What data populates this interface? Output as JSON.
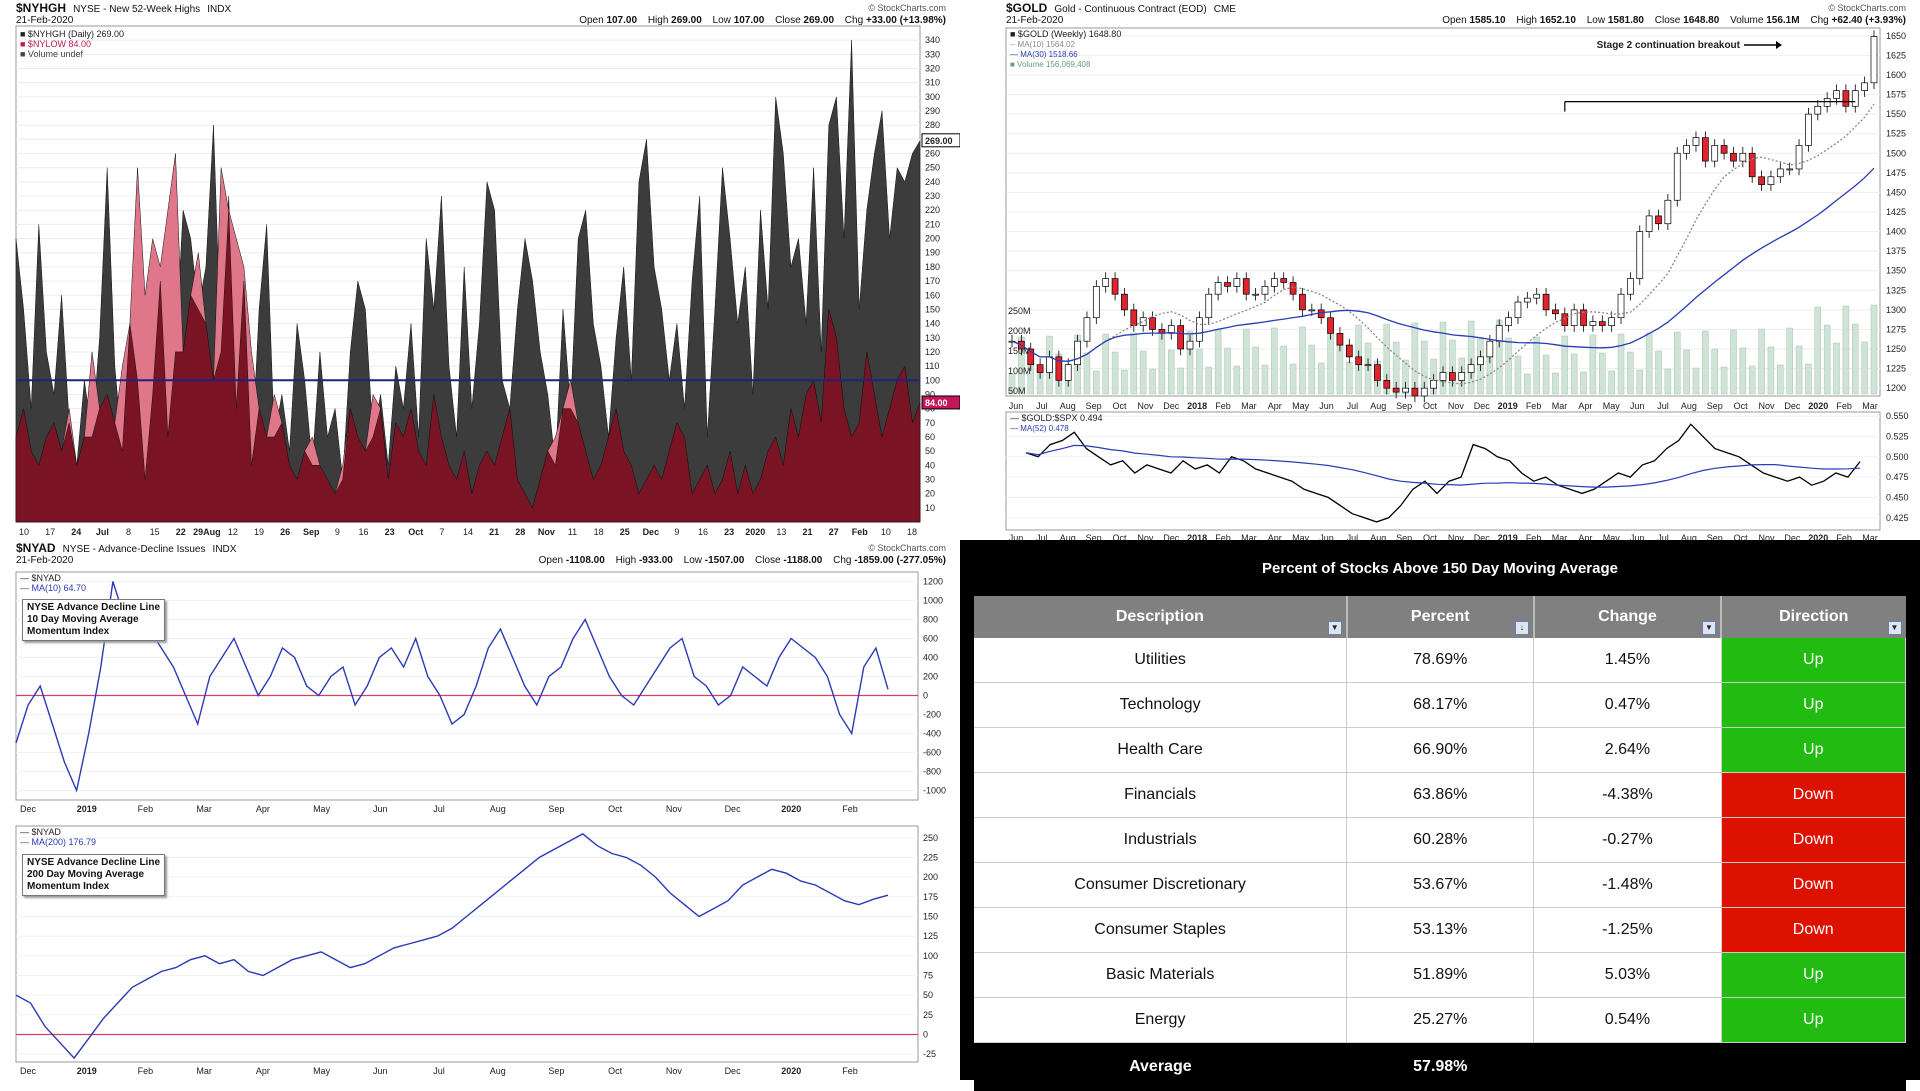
{
  "nyhgh": {
    "symbol": "$NYHGH",
    "desc": "NYSE - New 52-Week Highs",
    "exchange": "INDX",
    "source": "© StockCharts.com",
    "date": "21-Feb-2020",
    "ohlc": {
      "open_label": "Open",
      "open": "107.00",
      "high_label": "High",
      "high": "269.00",
      "low_label": "Low",
      "low": "107.00",
      "close_label": "Close",
      "close": "269.00",
      "chg_label": "Chg",
      "chg": "+33.00 (+13.98%)"
    },
    "legend": [
      "$NYHGH (Daily) 269.00",
      "$NYLOW 84.00",
      "Volume undef"
    ],
    "last_high_label": "269.00",
    "last_low_label": "84.00",
    "y_ticks": [
      "340",
      "330",
      "320",
      "310",
      "300",
      "290",
      "280",
      "270",
      "260",
      "250",
      "240",
      "230",
      "220",
      "210",
      "200",
      "190",
      "180",
      "170",
      "160",
      "150",
      "140",
      "130",
      "120",
      "110",
      "100",
      "90",
      "80",
      "70",
      "60",
      "50",
      "40",
      "30",
      "20",
      "10"
    ],
    "x_labels": [
      "10",
      "17",
      "24",
      "Jul",
      "8",
      "15",
      "22",
      "29Aug",
      "12",
      "19",
      "26",
      "Sep",
      "9",
      "16",
      "23",
      "Oct",
      "7",
      "14",
      "21",
      "28",
      "Nov",
      "11",
      "18",
      "25",
      "Dec",
      "9",
      "16",
      "23",
      "2020",
      "13",
      "21",
      "27",
      "Feb",
      "10",
      "18"
    ],
    "colors": {
      "highs": "#3c3c3c",
      "lows": "#7a1424",
      "lows_fill_above": "#e0768a",
      "refline": "#1a237e"
    }
  },
  "gold": {
    "symbol": "$GOLD",
    "desc": "Gold - Continuous Contract (EOD)",
    "exchange": "CME",
    "source": "© StockCharts.com",
    "date": "21-Feb-2020",
    "ohlc": {
      "open_label": "Open",
      "open": "1585.10",
      "high_label": "High",
      "high": "1652.10",
      "low_label": "Low",
      "low": "1581.80",
      "close_label": "Close",
      "close": "1648.80",
      "vol_label": "Volume",
      "vol": "156.1M",
      "chg_label": "Chg",
      "chg": "+62.40 (+3.93%)"
    },
    "legend": [
      "$GOLD (Weekly) 1648.80",
      "MA(10) 1564.02",
      "MA(30) 1518.66",
      "Volume 156,069,408"
    ],
    "annotation": "Stage 2 continuation breakout",
    "y_ticks": [
      "1650",
      "1625",
      "1600",
      "1575",
      "1550",
      "1525",
      "1500",
      "1475",
      "1450",
      "1425",
      "1400",
      "1375",
      "1350",
      "1325",
      "1300",
      "1275",
      "1250",
      "1225",
      "1200"
    ],
    "vol_ticks": [
      "250M",
      "200M",
      "150M",
      "100M",
      "50M"
    ],
    "x_labels": [
      "Jun",
      "Jul",
      "Aug",
      "Sep",
      "Oct",
      "Nov",
      "Dec",
      "2018",
      "Feb",
      "Mar",
      "Apr",
      "May",
      "Jun",
      "Jul",
      "Aug",
      "Sep",
      "Oct",
      "Nov",
      "Dec",
      "2019",
      "Feb",
      "Mar",
      "Apr",
      "May",
      "Jun",
      "Jul",
      "Aug",
      "Sep",
      "Oct",
      "Nov",
      "Dec",
      "2020",
      "Feb",
      "Mar"
    ],
    "ratio_legend": [
      "$GOLD:$SPX 0.494",
      "MA(52) 0.478"
    ],
    "ratio_ticks": [
      "0.550",
      "0.525",
      "0.500",
      "0.475",
      "0.450",
      "0.425"
    ]
  },
  "nyad10": {
    "symbol": "$NYAD",
    "desc": "NYSE - Advance-Decline Issues",
    "exchange": "INDX",
    "source": "© StockCharts.com",
    "date": "21-Feb-2020",
    "ohlc": {
      "open_label": "Open",
      "open": "-1108.00",
      "high_label": "High",
      "high": "-933.00",
      "low_label": "Low",
      "low": "-1507.00",
      "close_label": "Close",
      "close": "-1188.00",
      "chg_label": "Chg",
      "chg": "-1859.00 (-277.05%)"
    },
    "legend": [
      "$NYAD",
      "MA(10) 64.70"
    ],
    "annotation": [
      "NYSE Advance Decline Line",
      "10 Day Moving Average",
      "Momentum Index"
    ],
    "y_ticks": [
      "1200",
      "1000",
      "800",
      "600",
      "400",
      "200",
      "0",
      "-200",
      "-400",
      "-600",
      "-800",
      "-1000"
    ],
    "x_labels": [
      "Dec",
      "2019",
      "Feb",
      "Mar",
      "Apr",
      "May",
      "Jun",
      "Jul",
      "Aug",
      "Sep",
      "Oct",
      "Nov",
      "Dec",
      "2020",
      "Feb"
    ]
  },
  "nyad200": {
    "legend": [
      "$NYAD",
      "MA(200) 176.79"
    ],
    "annotation": [
      "NYSE Advance Decline Line",
      "200 Day Moving Average",
      "Momentum Index"
    ],
    "y_ticks": [
      "250",
      "225",
      "200",
      "175",
      "150",
      "125",
      "100",
      "75",
      "50",
      "25",
      "0",
      "-25"
    ],
    "x_labels": [
      "Dec",
      "2019",
      "Feb",
      "Mar",
      "Apr",
      "May",
      "Jun",
      "Jul",
      "Aug",
      "Sep",
      "Oct",
      "Nov",
      "Dec",
      "2020",
      "Feb"
    ]
  },
  "table": {
    "title": "Percent of Stocks Above 150 Day Moving Average",
    "headers": [
      "Description",
      "Percent",
      "Change",
      "Direction"
    ],
    "rows": [
      {
        "desc": "Utilities",
        "pct": "78.69%",
        "chg": "1.45%",
        "dir": "Up"
      },
      {
        "desc": "Technology",
        "pct": "68.17%",
        "chg": "0.47%",
        "dir": "Up"
      },
      {
        "desc": "Health Care",
        "pct": "66.90%",
        "chg": "2.64%",
        "dir": "Up"
      },
      {
        "desc": "Financials",
        "pct": "63.86%",
        "chg": "-4.38%",
        "dir": "Down"
      },
      {
        "desc": "Industrials",
        "pct": "60.28%",
        "chg": "-0.27%",
        "dir": "Down"
      },
      {
        "desc": "Consumer Discretionary",
        "pct": "53.67%",
        "chg": "-1.48%",
        "dir": "Down"
      },
      {
        "desc": "Consumer Staples",
        "pct": "53.13%",
        "chg": "-1.25%",
        "dir": "Down"
      },
      {
        "desc": "Basic Materials",
        "pct": "51.89%",
        "chg": "5.03%",
        "dir": "Up"
      },
      {
        "desc": "Energy",
        "pct": "25.27%",
        "chg": "0.54%",
        "dir": "Up"
      }
    ],
    "average_label": "Average",
    "average_value": "57.98%",
    "colors": {
      "up": "#22bb11",
      "down": "#dd1100"
    }
  },
  "chart_data": [
    {
      "type": "area",
      "title": "$NYHGH NYSE - New 52-Week Highs",
      "ylim": [
        0,
        350
      ],
      "reference_line": 100,
      "series": [
        {
          "name": "$NYHGH",
          "values": [
            200,
            150,
            80,
            210,
            120,
            90,
            160,
            70,
            40,
            100,
            60,
            130,
            250,
            110,
            50,
            140,
            100,
            30,
            90,
            170,
            60,
            120,
            220,
            200,
            150,
            180,
            280,
            120,
            230,
            80,
            170,
            40,
            150,
            210,
            60,
            90,
            50,
            140,
            100,
            40,
            120,
            60,
            80,
            30,
            120,
            170,
            150,
            60,
            90,
            40,
            110,
            80,
            140,
            60,
            200,
            150,
            230,
            110,
            60,
            180,
            80,
            140,
            240,
            220,
            100,
            80,
            150,
            200,
            170,
            120,
            90,
            40,
            150,
            80,
            200,
            220,
            140,
            110,
            60,
            130,
            180,
            100,
            240,
            270,
            180,
            150,
            100,
            140,
            80,
            170,
            230,
            60,
            150,
            250,
            200,
            140,
            180,
            90,
            220,
            150,
            300,
            260,
            180,
            200,
            140,
            250,
            120,
            280,
            300,
            200,
            340,
            150,
            220,
            260,
            290,
            200,
            250,
            240,
            260,
            269
          ]
        },
        {
          "name": "$NYLOW",
          "values": [
            60,
            80,
            50,
            40,
            60,
            70,
            50,
            80,
            40,
            60,
            120,
            80,
            90,
            70,
            110,
            140,
            250,
            160,
            200,
            180,
            220,
            260,
            120,
            160,
            190,
            140,
            100,
            250,
            220,
            200,
            180,
            120,
            80,
            60,
            90,
            70,
            40,
            30,
            50,
            60,
            40,
            30,
            20,
            40,
            80,
            60,
            50,
            90,
            80,
            30,
            70,
            60,
            80,
            50,
            40,
            90,
            60,
            40,
            30,
            50,
            20,
            40,
            50,
            40,
            60,
            80,
            30,
            20,
            10,
            30,
            50,
            60,
            80,
            100,
            70,
            50,
            30,
            40,
            60,
            80,
            50,
            40,
            20,
            30,
            40,
            30,
            50,
            70,
            60,
            20,
            30,
            40,
            20,
            30,
            50,
            20,
            40,
            20,
            30,
            50,
            60,
            40,
            80,
            60,
            90,
            100,
            70,
            150,
            130,
            80,
            60,
            70,
            120,
            90,
            60,
            80,
            100,
            110,
            70,
            84
          ]
        }
      ]
    },
    {
      "type": "candlestick",
      "title": "$GOLD Gold - Continuous Contract (EOD) Weekly",
      "ylim": [
        1190,
        1660
      ],
      "series_close": [
        1260,
        1250,
        1230,
        1220,
        1240,
        1210,
        1230,
        1260,
        1290,
        1330,
        1340,
        1320,
        1300,
        1280,
        1290,
        1275,
        1270,
        1280,
        1250,
        1260,
        1290,
        1320,
        1335,
        1330,
        1340,
        1320,
        1320,
        1330,
        1340,
        1335,
        1320,
        1300,
        1300,
        1290,
        1270,
        1255,
        1240,
        1230,
        1230,
        1210,
        1200,
        1195,
        1200,
        1190,
        1200,
        1210,
        1220,
        1210,
        1220,
        1230,
        1240,
        1260,
        1280,
        1290,
        1310,
        1315,
        1320,
        1300,
        1295,
        1280,
        1300,
        1280,
        1285,
        1280,
        1290,
        1320,
        1340,
        1400,
        1420,
        1410,
        1440,
        1500,
        1510,
        1520,
        1490,
        1510,
        1500,
        1490,
        1500,
        1470,
        1460,
        1470,
        1480,
        1480,
        1510,
        1550,
        1560,
        1570,
        1580,
        1560,
        1580,
        1590,
        1649
      ],
      "ma10_end": 1564.02,
      "ma30_end": 1518.66
    },
    {
      "type": "line",
      "title": "$GOLD:$SPX",
      "ylim": [
        0.41,
        0.555
      ],
      "values": [
        0.505,
        0.5,
        0.515,
        0.52,
        0.53,
        0.51,
        0.5,
        0.49,
        0.495,
        0.48,
        0.49,
        0.485,
        0.48,
        0.495,
        0.485,
        0.49,
        0.48,
        0.5,
        0.495,
        0.485,
        0.48,
        0.475,
        0.47,
        0.46,
        0.455,
        0.45,
        0.44,
        0.43,
        0.425,
        0.42,
        0.425,
        0.44,
        0.46,
        0.47,
        0.455,
        0.47,
        0.475,
        0.515,
        0.51,
        0.5,
        0.495,
        0.48,
        0.47,
        0.475,
        0.465,
        0.46,
        0.455,
        0.46,
        0.47,
        0.48,
        0.475,
        0.49,
        0.495,
        0.51,
        0.52,
        0.54,
        0.525,
        0.51,
        0.505,
        0.5,
        0.49,
        0.48,
        0.475,
        0.47,
        0.475,
        0.465,
        0.47,
        0.48,
        0.475,
        0.494
      ],
      "ma52_end": 0.478
    },
    {
      "type": "line",
      "title": "$NYAD MA(10)",
      "ylim": [
        -1100,
        1300
      ],
      "values": [
        -500,
        -100,
        100,
        -300,
        -700,
        -1000,
        -400,
        300,
        1200,
        800,
        600,
        700,
        500,
        300,
        0,
        -300,
        200,
        400,
        600,
        300,
        0,
        200,
        500,
        400,
        100,
        0,
        200,
        300,
        -100,
        100,
        400,
        500,
        300,
        600,
        200,
        0,
        -300,
        -200,
        100,
        500,
        700,
        400,
        100,
        -100,
        200,
        300,
        600,
        800,
        500,
        200,
        0,
        -100,
        100,
        300,
        500,
        600,
        200,
        100,
        -100,
        0,
        300,
        200,
        100,
        400,
        600,
        500,
        400,
        200,
        -200,
        -400,
        300,
        500,
        65
      ],
      "reference_line": 0
    },
    {
      "type": "line",
      "title": "$NYAD MA(200)",
      "ylim": [
        -35,
        265
      ],
      "values": [
        50,
        40,
        10,
        -10,
        -30,
        -5,
        20,
        40,
        60,
        70,
        80,
        85,
        95,
        100,
        90,
        95,
        80,
        75,
        85,
        95,
        100,
        105,
        95,
        85,
        90,
        100,
        110,
        115,
        120,
        125,
        135,
        150,
        165,
        180,
        195,
        210,
        225,
        235,
        245,
        255,
        240,
        230,
        225,
        215,
        200,
        180,
        165,
        150,
        160,
        170,
        190,
        200,
        210,
        205,
        195,
        190,
        180,
        170,
        165,
        172,
        177
      ],
      "reference_line": 0
    }
  ]
}
